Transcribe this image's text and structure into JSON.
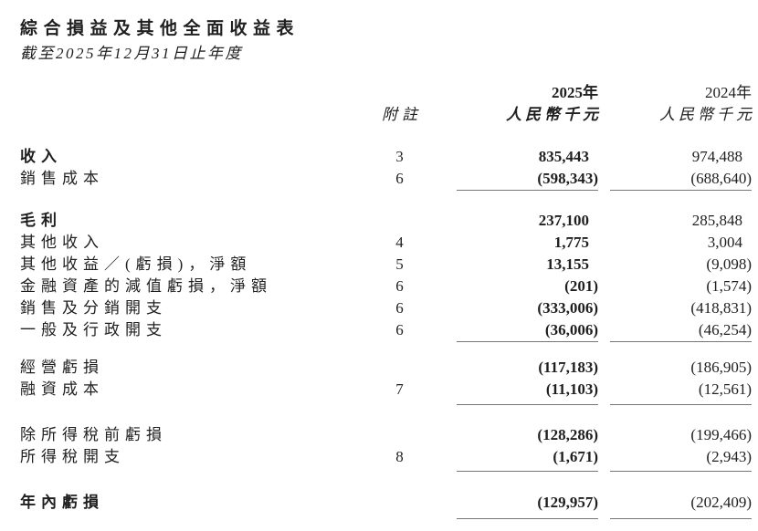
{
  "doc": {
    "title": "綜合損益及其他全面收益表",
    "subtitle": "截至2025年12月31日止年度",
    "header": {
      "note": "附註",
      "col2025": {
        "year": "2025年",
        "unit": "人民幣千元"
      },
      "col2024": {
        "year": "2024年",
        "unit": "人民幣千元"
      }
    },
    "rows": [
      {
        "label": "收入",
        "note": "3",
        "v2025": "835,443",
        "v2024": "974,488"
      },
      {
        "label": "銷售成本",
        "note": "6",
        "v2025": "(598,343)",
        "v2024": "(688,640)"
      },
      {
        "label": "毛利",
        "note": "",
        "v2025": "237,100",
        "v2024": "285,848"
      },
      {
        "label": "其他收入",
        "note": "4",
        "v2025": "1,775",
        "v2024": "3,004"
      },
      {
        "label": "其他收益／(虧損)，淨額",
        "note": "5",
        "v2025": "13,155",
        "v2024": "(9,098)"
      },
      {
        "label": "金融資產的減值虧損，淨額",
        "note": "6",
        "v2025": "(201)",
        "v2024": "(1,574)"
      },
      {
        "label": "銷售及分銷開支",
        "note": "6",
        "v2025": "(333,006)",
        "v2024": "(418,831)"
      },
      {
        "label": "一般及行政開支",
        "note": "6",
        "v2025": "(36,006)",
        "v2024": "(46,254)"
      },
      {
        "label": "經營虧損",
        "note": "",
        "v2025": "(117,183)",
        "v2024": "(186,905)"
      },
      {
        "label": "融資成本",
        "note": "7",
        "v2025": "(11,103)",
        "v2024": "(12,561)"
      },
      {
        "label": "除所得稅前虧損",
        "note": "",
        "v2025": "(128,286)",
        "v2024": "(199,466)"
      },
      {
        "label": "所得稅開支",
        "note": "8",
        "v2025": "(1,671)",
        "v2024": "(2,943)"
      },
      {
        "label": "年內虧損",
        "note": "",
        "v2025": "(129,957)",
        "v2024": "(202,409)"
      }
    ],
    "colors": {
      "text": "#1f1f1f",
      "rule": "#767676",
      "background": "#ffffff"
    }
  }
}
